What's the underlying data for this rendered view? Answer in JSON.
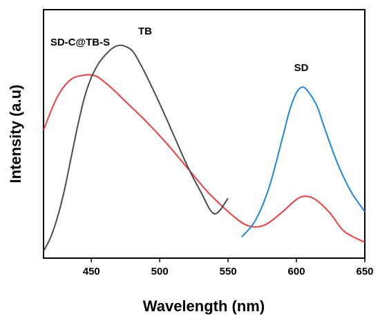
{
  "chart_data": {
    "type": "line",
    "title": "",
    "xlabel": "Wavelength (nm)",
    "ylabel": "Intensity (a.u)",
    "xlim": [
      415,
      650
    ],
    "ylim": [
      0,
      1
    ],
    "xticks": [
      450,
      500,
      550,
      600,
      650
    ],
    "yticks_shown": false,
    "grid": false,
    "legend": "none",
    "series": [
      {
        "name": "SD-C@TB-S",
        "color": "#ef3b3b",
        "x": [
          415,
          425,
          435,
          445,
          450,
          455,
          465,
          475,
          490,
          505,
          520,
          535,
          550,
          560,
          565,
          570,
          575,
          580,
          590,
          600,
          607,
          615,
          625,
          635,
          650
        ],
        "y": [
          0.55,
          0.7,
          0.78,
          0.8,
          0.8,
          0.79,
          0.74,
          0.68,
          0.59,
          0.49,
          0.38,
          0.27,
          0.18,
          0.13,
          0.115,
          0.11,
          0.115,
          0.13,
          0.18,
          0.235,
          0.25,
          0.23,
          0.17,
          0.09,
          0.04
        ]
      },
      {
        "name": "TB",
        "color": "#4a4a4a",
        "x": [
          415,
          420,
          425,
          430,
          435,
          440,
          445,
          450,
          455,
          460,
          465,
          470,
          475,
          480,
          485,
          490,
          500,
          510,
          520,
          530,
          540,
          550
        ],
        "y": [
          0.0,
          0.06,
          0.15,
          0.27,
          0.42,
          0.57,
          0.7,
          0.79,
          0.85,
          0.89,
          0.92,
          0.935,
          0.93,
          0.91,
          0.86,
          0.8,
          0.67,
          0.53,
          0.39,
          0.27,
          0.17,
          0.24
        ]
      },
      {
        "name": "SD",
        "color": "#1a86e0",
        "x": [
          560,
          570,
          580,
          590,
          595,
          600,
          604,
          608,
          615,
          620,
          630,
          640,
          650
        ],
        "y": [
          0.065,
          0.14,
          0.29,
          0.52,
          0.64,
          0.72,
          0.745,
          0.73,
          0.66,
          0.57,
          0.4,
          0.27,
          0.18
        ]
      }
    ],
    "annotations": [
      {
        "text": "SD-C@TB-S",
        "series": "SD-C@TB-S"
      },
      {
        "text": "TB",
        "series": "TB"
      },
      {
        "text": "SD",
        "series": "SD"
      }
    ]
  }
}
